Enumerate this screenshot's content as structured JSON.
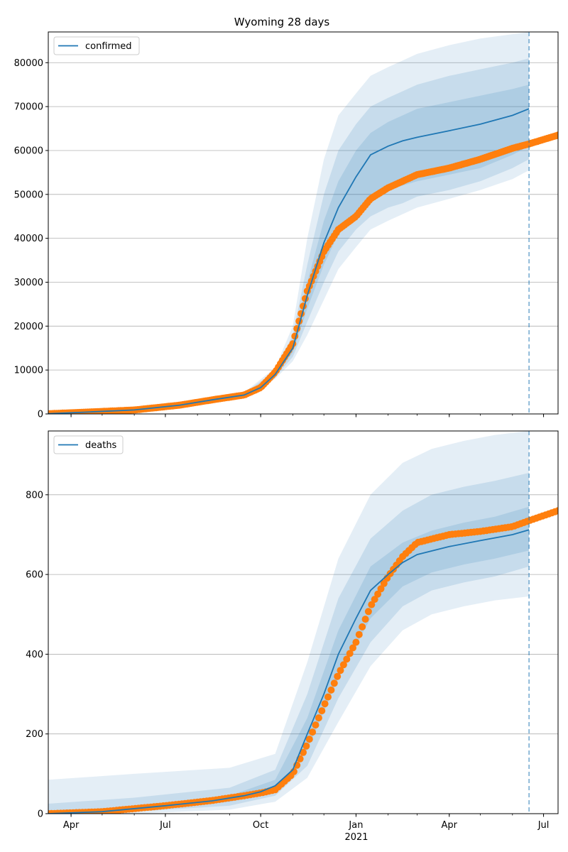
{
  "figure": {
    "title": "Wyoming 28 days",
    "x_tick_labels": [
      "Apr",
      "Jul",
      "Oct",
      "Jan",
      "Apr",
      "Jul"
    ],
    "x_secondary_label": "2021"
  },
  "chart_data": [
    {
      "type": "line",
      "title": "Wyoming 28 days",
      "xlabel": "",
      "ylabel": "",
      "xlim": [
        "2020-03-10",
        "2021-07-15"
      ],
      "ylim": [
        0,
        87000
      ],
      "yticks": [
        0,
        10000,
        20000,
        30000,
        40000,
        50000,
        60000,
        70000,
        80000
      ],
      "x_ticks": [
        "2020-04-01",
        "2020-07-01",
        "2020-10-01",
        "2021-01-01",
        "2021-04-01",
        "2021-07-01"
      ],
      "grid": "y",
      "legend": "upper left",
      "forecast_date": "2021-06-17",
      "series": [
        {
          "name": "confirmed",
          "role": "median",
          "color": "#1f77b4",
          "x": [
            "2020-03-10",
            "2020-04-15",
            "2020-06-01",
            "2020-07-15",
            "2020-08-15",
            "2020-09-15",
            "2020-10-01",
            "2020-10-15",
            "2020-11-01",
            "2020-11-15",
            "2020-12-01",
            "2020-12-15",
            "2021-01-01",
            "2021-01-15",
            "2021-02-01",
            "2021-02-15",
            "2021-03-01",
            "2021-04-01",
            "2021-05-01",
            "2021-06-01",
            "2021-06-17"
          ],
          "y": [
            50,
            400,
            900,
            2000,
            3200,
            4300,
            6000,
            9000,
            15000,
            27000,
            39000,
            47000,
            54000,
            59000,
            61000,
            62200,
            63000,
            64500,
            66000,
            68000,
            69500
          ]
        }
      ],
      "observed": {
        "color": "#ff7f0e",
        "x": [
          "2020-03-10",
          "2020-04-15",
          "2020-06-01",
          "2020-07-15",
          "2020-08-15",
          "2020-09-15",
          "2020-10-01",
          "2020-10-15",
          "2020-11-01",
          "2020-11-15",
          "2020-12-01",
          "2020-12-15",
          "2021-01-01",
          "2021-01-15",
          "2021-02-01",
          "2021-02-15",
          "2021-03-01",
          "2021-04-01",
          "2021-05-01",
          "2021-06-01",
          "2021-06-17",
          "2021-07-15"
        ],
        "y": [
          50,
          400,
          900,
          2000,
          3200,
          4300,
          6000,
          9500,
          16000,
          28000,
          37000,
          42000,
          45000,
          49000,
          51500,
          53000,
          54500,
          56000,
          58000,
          60500,
          61500,
          63500
        ]
      },
      "bands": [
        {
          "level": "inner",
          "color": "#1f77b4",
          "opacity": 0.15,
          "x": [
            "2020-09-15",
            "2020-10-15",
            "2020-11-01",
            "2020-11-15",
            "2020-12-01",
            "2020-12-15",
            "2021-01-01",
            "2021-01-15",
            "2021-02-01",
            "2021-02-15",
            "2021-03-01",
            "2021-04-01",
            "2021-05-01",
            "2021-06-01",
            "2021-06-17"
          ],
          "lower": [
            4100,
            8700,
            14000,
            24000,
            34000,
            41000,
            46000,
            49500,
            51000,
            52000,
            53000,
            54500,
            56000,
            59000,
            61000
          ],
          "upper": [
            4500,
            9300,
            16500,
            30000,
            44000,
            53000,
            60000,
            64000,
            66500,
            68000,
            69500,
            71000,
            72500,
            74000,
            75000
          ]
        },
        {
          "level": "middle",
          "color": "#1f77b4",
          "opacity": 0.15,
          "x": [
            "2020-09-15",
            "2020-10-15",
            "2020-11-01",
            "2020-11-15",
            "2020-12-01",
            "2020-12-15",
            "2021-01-01",
            "2021-01-15",
            "2021-02-01",
            "2021-02-15",
            "2021-03-01",
            "2021-04-01",
            "2021-05-01",
            "2021-06-01",
            "2021-06-17"
          ],
          "lower": [
            4000,
            8400,
            13000,
            21000,
            30000,
            37000,
            42000,
            45000,
            47000,
            48000,
            49500,
            51000,
            53000,
            56000,
            58000
          ],
          "upper": [
            4700,
            9800,
            18000,
            34000,
            50000,
            60000,
            66000,
            70000,
            72000,
            73500,
            75000,
            77000,
            78500,
            80000,
            81000
          ]
        },
        {
          "level": "outer",
          "color": "#1f77b4",
          "opacity": 0.12,
          "x": [
            "2020-09-15",
            "2020-10-15",
            "2020-11-01",
            "2020-11-15",
            "2020-12-01",
            "2020-12-15",
            "2021-01-01",
            "2021-01-15",
            "2021-02-01",
            "2021-02-15",
            "2021-03-01",
            "2021-04-01",
            "2021-05-01",
            "2021-06-01",
            "2021-06-17"
          ],
          "lower": [
            3900,
            8000,
            12000,
            18000,
            26000,
            33000,
            38000,
            42000,
            44000,
            45500,
            47000,
            49000,
            51000,
            53500,
            55500
          ],
          "upper": [
            4900,
            10500,
            20000,
            40000,
            58000,
            68000,
            73000,
            77000,
            79000,
            80500,
            82000,
            84000,
            85500,
            86500,
            87000
          ]
        }
      ]
    },
    {
      "type": "line",
      "title": "",
      "xlabel": "",
      "ylabel": "",
      "xlim": [
        "2020-03-10",
        "2021-07-15"
      ],
      "ylim": [
        0,
        960
      ],
      "yticks": [
        0,
        200,
        400,
        600,
        800
      ],
      "x_ticks": [
        "2020-04-01",
        "2020-07-01",
        "2020-10-01",
        "2021-01-01",
        "2021-04-01",
        "2021-07-01"
      ],
      "grid": "y",
      "legend": "upper left",
      "forecast_date": "2021-06-17",
      "series": [
        {
          "name": "deaths",
          "role": "median",
          "color": "#1f77b4",
          "x": [
            "2020-03-10",
            "2020-05-01",
            "2020-07-01",
            "2020-08-15",
            "2020-09-15",
            "2020-10-01",
            "2020-10-15",
            "2020-11-01",
            "2020-11-15",
            "2020-12-01",
            "2020-12-15",
            "2021-01-01",
            "2021-01-15",
            "2021-02-01",
            "2021-02-15",
            "2021-03-01",
            "2021-04-01",
            "2021-05-01",
            "2021-06-01",
            "2021-06-17"
          ],
          "y": [
            0,
            5,
            20,
            32,
            45,
            55,
            70,
            110,
            200,
            300,
            400,
            490,
            560,
            600,
            630,
            650,
            670,
            685,
            700,
            712
          ]
        }
      ],
      "observed": {
        "color": "#ff7f0e",
        "x": [
          "2020-03-10",
          "2020-05-01",
          "2020-07-01",
          "2020-08-15",
          "2020-09-15",
          "2020-10-01",
          "2020-10-15",
          "2020-11-01",
          "2020-11-15",
          "2020-12-01",
          "2020-12-15",
          "2021-01-01",
          "2021-01-15",
          "2021-02-01",
          "2021-02-15",
          "2021-03-01",
          "2021-04-01",
          "2021-05-01",
          "2021-06-01",
          "2021-06-17",
          "2021-07-15"
        ],
        "y": [
          0,
          5,
          20,
          33,
          45,
          52,
          60,
          100,
          175,
          270,
          350,
          430,
          520,
          595,
          645,
          680,
          700,
          708,
          720,
          735,
          760
        ]
      },
      "bands": [
        {
          "level": "inner",
          "color": "#1f77b4",
          "opacity": 0.15,
          "x": [
            "2020-03-10",
            "2020-06-01",
            "2020-09-01",
            "2020-10-15",
            "2020-11-15",
            "2020-12-15",
            "2021-01-15",
            "2021-02-15",
            "2021-03-15",
            "2021-04-15",
            "2021-05-15",
            "2021-06-17"
          ],
          "lower": [
            0,
            10,
            30,
            55,
            160,
            340,
            490,
            570,
            605,
            625,
            640,
            660
          ],
          "upper": [
            2,
            20,
            45,
            85,
            240,
            460,
            620,
            680,
            710,
            730,
            745,
            770
          ]
        },
        {
          "level": "middle",
          "color": "#1f77b4",
          "opacity": 0.15,
          "x": [
            "2020-03-10",
            "2020-06-01",
            "2020-09-01",
            "2020-10-15",
            "2020-11-15",
            "2020-12-15",
            "2021-01-15",
            "2021-02-15",
            "2021-03-15",
            "2021-04-15",
            "2021-05-15",
            "2021-06-17"
          ],
          "lower": [
            0,
            5,
            20,
            45,
            120,
            290,
            430,
            520,
            560,
            580,
            595,
            620
          ],
          "upper": [
            25,
            40,
            65,
            110,
            300,
            540,
            690,
            760,
            800,
            820,
            835,
            855
          ]
        },
        {
          "level": "outer",
          "color": "#1f77b4",
          "opacity": 0.12,
          "x": [
            "2020-03-10",
            "2020-06-01",
            "2020-09-01",
            "2020-10-15",
            "2020-11-15",
            "2020-12-15",
            "2021-01-15",
            "2021-02-15",
            "2021-03-15",
            "2021-04-15",
            "2021-05-15",
            "2021-06-17"
          ],
          "lower": [
            0,
            0,
            10,
            30,
            90,
            230,
            370,
            460,
            500,
            520,
            535,
            545
          ],
          "upper": [
            85,
            100,
            115,
            150,
            380,
            640,
            800,
            880,
            915,
            935,
            950,
            960
          ]
        }
      ]
    }
  ]
}
